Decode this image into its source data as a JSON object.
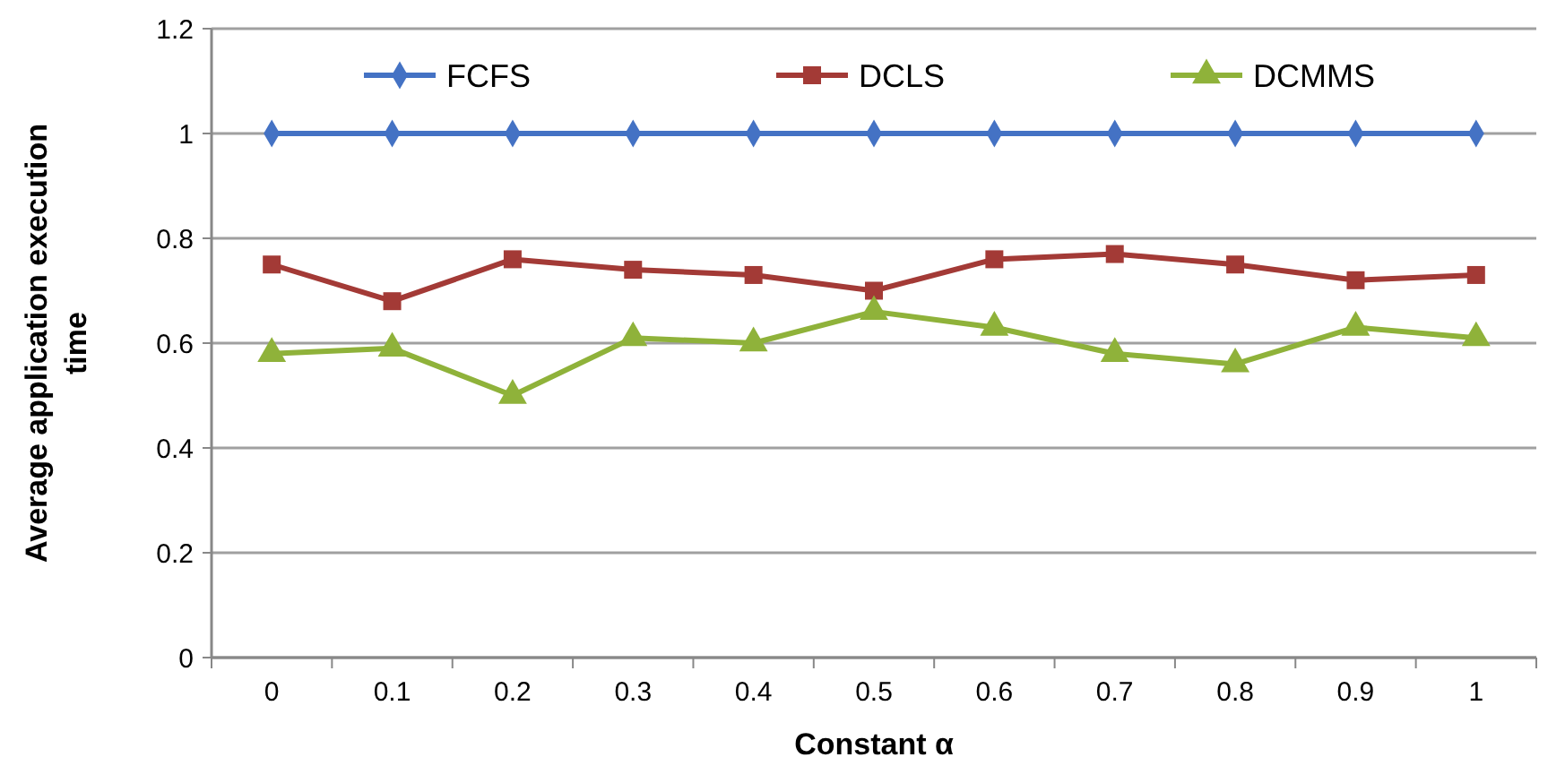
{
  "chart_data": {
    "type": "line",
    "xlabel": "Constant α",
    "ylabel": "Average application execution time",
    "categories": [
      "0",
      "0.1",
      "0.2",
      "0.3",
      "0.4",
      "0.5",
      "0.6",
      "0.7",
      "0.8",
      "0.9",
      "1"
    ],
    "series": [
      {
        "name": "FCFS",
        "color": "#4472c4",
        "marker": "diamond",
        "values": [
          1,
          1,
          1,
          1,
          1,
          1,
          1,
          1,
          1,
          1,
          1
        ]
      },
      {
        "name": "DCLS",
        "color": "#a33a36",
        "marker": "square",
        "values": [
          0.75,
          0.68,
          0.76,
          0.74,
          0.73,
          0.7,
          0.76,
          0.77,
          0.75,
          0.72,
          0.73
        ]
      },
      {
        "name": "DCMMS",
        "color": "#8fb23a",
        "marker": "triangle",
        "values": [
          0.58,
          0.59,
          0.5,
          0.61,
          0.6,
          0.66,
          0.63,
          0.58,
          0.56,
          0.63,
          0.61
        ]
      }
    ],
    "ylim": [
      0,
      1.2
    ],
    "yticks": [
      0,
      0.2,
      0.4,
      0.6,
      0.8,
      1,
      1.2
    ],
    "grid": "y",
    "legend": "top"
  }
}
